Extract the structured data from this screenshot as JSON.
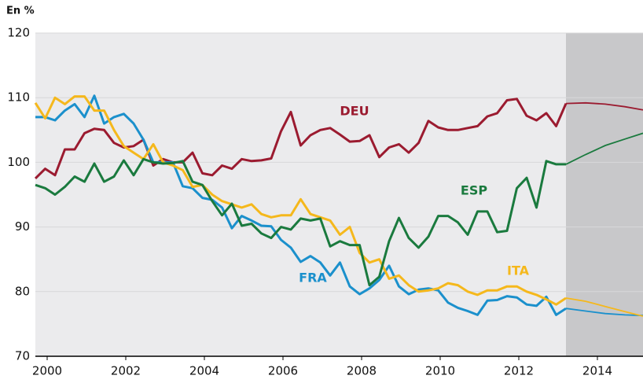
{
  "chart_data": {
    "type": "line",
    "y_axis_label": "En %",
    "x_start": 1999.7,
    "x_step": 0.25,
    "xlim": [
      1999.7,
      2015.16
    ],
    "xticks": [
      2000,
      2002,
      2004,
      2006,
      2008,
      2010,
      2012,
      2014
    ],
    "ylim": [
      70,
      120
    ],
    "yticks": [
      70,
      80,
      90,
      100,
      110,
      120
    ],
    "grid": true,
    "projection_x": [
      2013.2,
      2013.7,
      2014.2,
      2014.7,
      2015.16
    ],
    "series": [
      {
        "name": "DEU",
        "color": "#9b1b30",
        "values": [
          97.5,
          99,
          98,
          102,
          102,
          104.5,
          105.2,
          105,
          103,
          102.3,
          102.5,
          103.5,
          99.5,
          100.5,
          100,
          100,
          101.5,
          98.3,
          98,
          99.5,
          99,
          100.5,
          100.2,
          100.3,
          100.6,
          104.8,
          107.8,
          102.6,
          104.2,
          105,
          105.3,
          104.3,
          103.2,
          103.3,
          104.2,
          100.8,
          102.3,
          102.8,
          101.5,
          103,
          106.4,
          105.4,
          105,
          105,
          105.3,
          105.6,
          107.1,
          107.6,
          109.6,
          109.8,
          107.2,
          106.5,
          107.6,
          105.6,
          109.1
        ],
        "projection": [
          109.1,
          109.2,
          109,
          108.6,
          108.1
        ]
      },
      {
        "name": "FRA",
        "color": "#1b90cc",
        "values": [
          107,
          107,
          106.5,
          108,
          109,
          107,
          110.3,
          106,
          107,
          107.5,
          106,
          103.5,
          100,
          100,
          100,
          96.3,
          96,
          94.5,
          94.2,
          93,
          89.8,
          91.7,
          91,
          90.2,
          90.1,
          88,
          86.8,
          84.6,
          85.5,
          84.5,
          82.5,
          84.5,
          80.8,
          79.6,
          80.5,
          81.8,
          84,
          80.8,
          79.6,
          80.3,
          80.5,
          80.2,
          78.3,
          77.5,
          77,
          76.4,
          78.6,
          78.7,
          79.3,
          79.1,
          78,
          77.8,
          79.2,
          76.4,
          77.4
        ],
        "projection": [
          77.4,
          77,
          76.6,
          76.4,
          76.3
        ]
      },
      {
        "name": "ITA",
        "color": "#f5b81c",
        "values": [
          109.2,
          106.8,
          110,
          109,
          110.2,
          110.2,
          108,
          108,
          105,
          102.5,
          101.5,
          100.5,
          102.8,
          100,
          99.5,
          98.8,
          96.2,
          96.5,
          95,
          94,
          93.5,
          93,
          93.5,
          92,
          91.5,
          91.8,
          91.8,
          94.3,
          92,
          91.5,
          91,
          88.8,
          90,
          86,
          84.5,
          85,
          82,
          82.5,
          81,
          80,
          80.2,
          80.5,
          81.3,
          81,
          80,
          79.5,
          80.2,
          80.2,
          80.8,
          80.8,
          80,
          79.5,
          78.8,
          78,
          79
        ],
        "projection": [
          79,
          78.5,
          77.7,
          76.9,
          76.2
        ]
      },
      {
        "name": "ESP",
        "color": "#1a7a3e",
        "values": [
          96.5,
          96,
          95,
          96.2,
          97.8,
          97,
          99.8,
          97,
          97.8,
          100.3,
          98,
          100.5,
          100,
          99.8,
          99.9,
          100.2,
          97,
          96.5,
          94,
          91.8,
          93.6,
          90.2,
          90.5,
          89,
          88.3,
          90,
          89.6,
          91.3,
          91,
          91.3,
          87,
          87.8,
          87.2,
          87.2,
          81,
          82.3,
          87.8,
          91.4,
          88.3,
          86.8,
          88.5,
          91.7,
          91.7,
          90.7,
          88.8,
          92.4,
          92.4,
          89.2,
          89.4,
          96,
          97.6,
          93,
          100.2,
          99.7,
          99.7
        ],
        "projection": [
          99.7,
          101.2,
          102.6,
          103.6,
          104.5
        ]
      }
    ]
  }
}
